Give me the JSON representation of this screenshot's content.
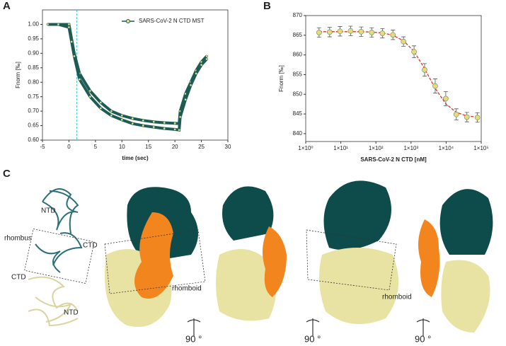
{
  "panel_labels": [
    "A",
    "B",
    "C"
  ],
  "chart_data": [
    {
      "type": "line",
      "title": null,
      "xlabel": "time (sec)",
      "ylabel": "Fnorm [‰]",
      "x": [
        -4,
        -2,
        0,
        0.5,
        1,
        2,
        4,
        6,
        8,
        10,
        12,
        14,
        16,
        18,
        20,
        20.8,
        21,
        22,
        23,
        24,
        25,
        26
      ],
      "series": [
        {
          "name": "SARS-CoV-2 N CTD MST",
          "color": "#1d5c55",
          "marker_color": "#e3e08a",
          "values": [
            1.0,
            1.0,
            1.0,
            0.95,
            0.9,
            0.83,
            0.77,
            0.73,
            0.7,
            0.685,
            0.675,
            0.668,
            0.663,
            0.66,
            0.658,
            0.657,
            0.7,
            0.76,
            0.8,
            0.84,
            0.87,
            0.89
          ]
        },
        {
          "name": null,
          "color": "#1d5c55",
          "marker_color": "#e3e08a",
          "values": [
            1.0,
            1.0,
            0.99,
            0.94,
            0.89,
            0.81,
            0.75,
            0.71,
            0.685,
            0.67,
            0.657,
            0.65,
            0.645,
            0.64,
            0.637,
            0.635,
            0.68,
            0.74,
            0.79,
            0.83,
            0.86,
            0.88
          ]
        }
      ],
      "marker_x": 1.5,
      "marker_color": "#29c4d8",
      "xlim": [
        -5,
        30
      ],
      "xticks": [
        -5,
        0,
        5,
        10,
        15,
        20,
        25,
        30
      ],
      "ylim": [
        0.6,
        1.05
      ],
      "yticks": [
        {
          "value": 0.6,
          "label": "0.60"
        },
        0.65,
        {
          "value": 0.7,
          "label": "0.70"
        },
        0.75,
        {
          "value": 0.8,
          "label": "0.80"
        },
        0.85,
        {
          "value": 0.9,
          "label": "0.90"
        },
        0.95,
        {
          "value": 1.0,
          "label": "1.00"
        }
      ],
      "legend": "upper right"
    },
    {
      "type": "scatter",
      "xlabel": "SARS-CoV-2 N CTD [nM]",
      "ylabel": "Fnorm [‰]",
      "xlog": true,
      "x": [
        2.4,
        4.8,
        9.5,
        19,
        38,
        76,
        153,
        305,
        610,
        1220,
        2440,
        4880,
        9770,
        19500,
        39000,
        78000
      ],
      "values": [
        865.7,
        865.8,
        866.0,
        866.1,
        865.9,
        865.7,
        865.5,
        865.1,
        863.4,
        860.8,
        856.2,
        852.1,
        848.9,
        844.9,
        844.2,
        844.1
      ],
      "errors": [
        1.2,
        1.2,
        1.2,
        1.2,
        1.2,
        1.2,
        1.2,
        1.2,
        1.2,
        1.5,
        1.6,
        1.8,
        1.8,
        1.4,
        1.2,
        1.2
      ],
      "color": "#e0de74",
      "fit": {
        "color": "#e03020",
        "values": [
          865.9,
          865.9,
          865.9,
          865.9,
          865.9,
          865.8,
          865.6,
          865.0,
          863.6,
          860.9,
          856.5,
          851.5,
          847.6,
          845.4,
          844.5,
          844.2
        ]
      },
      "xlim": [
        1,
        100000
      ],
      "xticks": [
        {
          "value": 1,
          "label": "1×10⁰"
        },
        {
          "value": 10,
          "label": "1×10¹"
        },
        {
          "value": 100,
          "label": "1×10²"
        },
        {
          "value": 1000,
          "label": "1×10³"
        },
        {
          "value": 10000,
          "label": "1×10⁴"
        },
        {
          "value": 100000,
          "label": "1×10⁵"
        }
      ],
      "ylim": [
        838,
        870
      ],
      "yticks": [
        840,
        845,
        850,
        855,
        860,
        865,
        870
      ]
    }
  ],
  "panel_c": {
    "ribbon_labels": [
      "NTD",
      "rhombus",
      "CTD",
      "CTD",
      "NTD"
    ],
    "rhomboid_labels": [
      "rhomboid",
      "rhomboid"
    ],
    "rotation_labels": [
      "90 °",
      "90 °",
      "90 °"
    ]
  }
}
